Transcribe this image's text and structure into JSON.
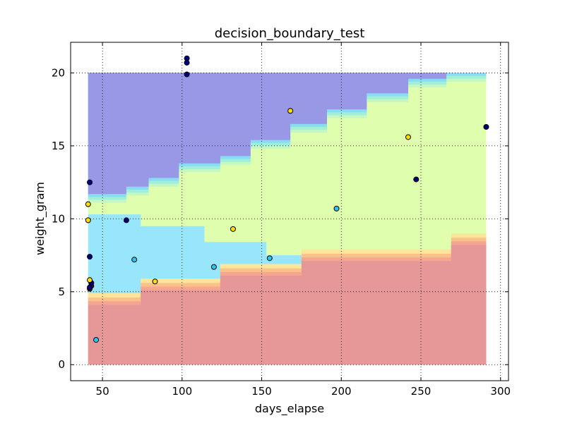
{
  "chart_data": {
    "type": "scatter",
    "title": "decision_boundary_test",
    "xlabel": "days_elapse",
    "ylabel": "weight_gram",
    "xlim": [
      30,
      305
    ],
    "ylim": [
      -1.1,
      22.1
    ],
    "x_ticks": [
      50,
      100,
      150,
      200,
      250,
      300
    ],
    "x_tick_labels": [
      "50",
      "100",
      "150",
      "200",
      "250",
      "300"
    ],
    "y_ticks": [
      0,
      5,
      10,
      15,
      20
    ],
    "y_tick_labels": [
      "0",
      "5",
      "10",
      "15",
      "20"
    ],
    "grid": true,
    "grid_style": "dotted",
    "legend": "none",
    "class_colors": {
      "red": "#e69898",
      "yellow": "#dfffaf",
      "cyan": "#98e6fb",
      "blue": "#9898e6"
    },
    "regions": {
      "x_range": [
        41,
        291
      ],
      "y_range": [
        0,
        20
      ],
      "red_top_steps": [
        [
          41,
          4.1
        ],
        [
          74,
          5.1
        ],
        [
          124,
          6.1
        ],
        [
          175,
          7.1
        ],
        [
          269,
          8.2
        ],
        [
          291,
          8.2
        ]
      ],
      "cyan_region": {
        "top_steps": [
          [
            41,
            10.3
          ],
          [
            74,
            9.5
          ],
          [
            114,
            8.4
          ],
          [
            153,
            7.5
          ],
          [
            175,
            7.5
          ]
        ],
        "bottom_steps": [
          [
            41,
            4.1
          ],
          [
            74,
            5.1
          ],
          [
            124,
            6.1
          ],
          [
            175,
            6.1
          ]
        ]
      },
      "blue_bottom_steps": [
        [
          41,
          11.7
        ],
        [
          65,
          12.2
        ],
        [
          79,
          12.8
        ],
        [
          98,
          13.8
        ],
        [
          124,
          14.3
        ],
        [
          143,
          15.4
        ],
        [
          168,
          16.5
        ],
        [
          191,
          17.5
        ],
        [
          216,
          18.6
        ],
        [
          242,
          19.6
        ],
        [
          266,
          20
        ],
        [
          291,
          20
        ]
      ]
    },
    "points": [
      {
        "x": 42,
        "y": 5.2,
        "class": "red"
      },
      {
        "x": 43,
        "y": 5.4,
        "class": "red"
      },
      {
        "x": 42,
        "y": 5.3,
        "class": "blue"
      },
      {
        "x": 43,
        "y": 5.6,
        "class": "blue"
      },
      {
        "x": 42,
        "y": 5.8,
        "class": "yellow"
      },
      {
        "x": 41,
        "y": 9.9,
        "class": "yellow"
      },
      {
        "x": 41,
        "y": 11.0,
        "class": "yellow"
      },
      {
        "x": 42,
        "y": 12.5,
        "class": "blue"
      },
      {
        "x": 42,
        "y": 7.4,
        "class": "blue"
      },
      {
        "x": 46,
        "y": 1.7,
        "class": "cyan"
      },
      {
        "x": 65,
        "y": 9.9,
        "class": "blue"
      },
      {
        "x": 70,
        "y": 7.2,
        "class": "cyan"
      },
      {
        "x": 83,
        "y": 5.7,
        "class": "yellow"
      },
      {
        "x": 103,
        "y": 21.0,
        "class": "blue"
      },
      {
        "x": 103,
        "y": 20.7,
        "class": "blue"
      },
      {
        "x": 103,
        "y": 19.9,
        "class": "blue"
      },
      {
        "x": 120,
        "y": 6.7,
        "class": "cyan"
      },
      {
        "x": 132,
        "y": 9.3,
        "class": "yellow"
      },
      {
        "x": 155,
        "y": 7.3,
        "class": "cyan"
      },
      {
        "x": 168,
        "y": 17.4,
        "class": "yellow"
      },
      {
        "x": 197,
        "y": 10.7,
        "class": "cyan"
      },
      {
        "x": 242,
        "y": 15.6,
        "class": "yellow"
      },
      {
        "x": 247,
        "y": 12.7,
        "class": "blue"
      },
      {
        "x": 291,
        "y": 16.3,
        "class": "blue"
      }
    ]
  },
  "point_colors": {
    "red": "#7f0000",
    "blue": "#00007f",
    "yellow": "#ffdd00",
    "cyan": "#2bc6f0"
  }
}
